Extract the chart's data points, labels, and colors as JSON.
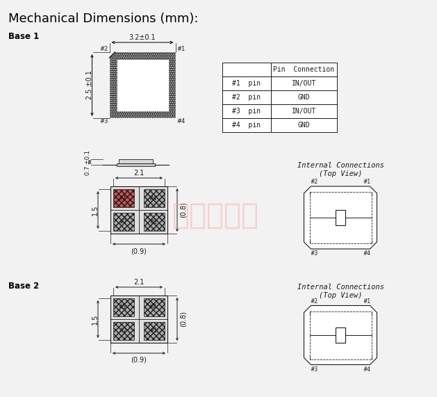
{
  "title": "Mechanical Dimensions (mm):",
  "background_color": "#f2f2f2",
  "text_color": "#000000",
  "watermark_text": "康贡尔电子",
  "watermark_color": "#ff9999",
  "table_headers": [
    "",
    "Pin  Connection"
  ],
  "table_rows": [
    [
      "#1  pin",
      "IN/OUT"
    ],
    [
      "#2  pin",
      "GND"
    ],
    [
      "#3  pin",
      "IN/OUT"
    ],
    [
      "#4  pin",
      "GND"
    ]
  ],
  "dim_32": "3.2±0.1",
  "dim_25": "2.5 ±0.1",
  "dim_07": "0.7 ±0.1",
  "dim_21": "2.1",
  "dim_08": "(0.8)",
  "dim_15": "1.5",
  "dim_09": "(0.9)",
  "label_base1": "Base 1",
  "label_base2": "Base 2",
  "label_internal": "Internal Connections",
  "label_topview": "(Top View)",
  "pin_labels": [
    "#1",
    "#2",
    "#3",
    "#4"
  ]
}
